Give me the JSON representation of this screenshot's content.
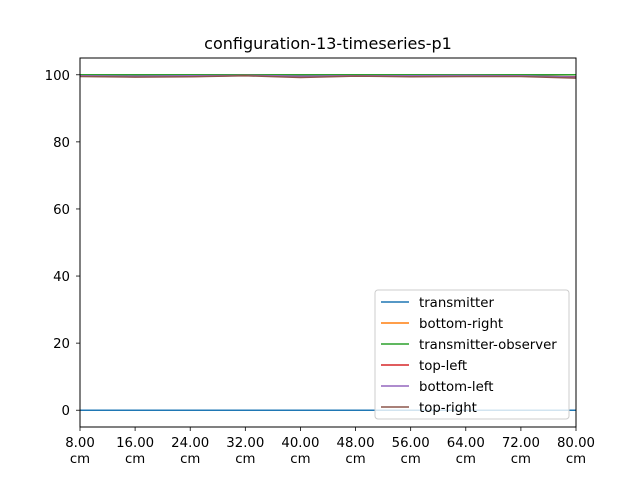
{
  "chart_data": {
    "type": "line",
    "title": "configuration-13-timeseries-p1",
    "xlabel": "",
    "ylabel": "",
    "x_ticks": [
      "8.00\ncm",
      "16.00\ncm",
      "24.00\ncm",
      "32.00\ncm",
      "40.00\ncm",
      "48.00\ncm",
      "56.00\ncm",
      "64.00\ncm",
      "72.00\ncm",
      "80.00\ncm"
    ],
    "y_ticks": [
      "0",
      "20",
      "40",
      "60",
      "80",
      "100"
    ],
    "xlim": [
      8,
      80
    ],
    "ylim": [
      -5,
      105
    ],
    "grid": false,
    "legend_position": "bottom-right",
    "x": [
      8,
      16,
      24,
      32,
      40,
      48,
      56,
      64,
      72,
      80
    ],
    "series": [
      {
        "name": "transmitter",
        "color": "#1f77b4",
        "values": [
          0,
          0,
          0,
          0,
          0,
          0,
          0,
          0,
          0,
          0
        ]
      },
      {
        "name": "bottom-right",
        "color": "#ff7f0e",
        "values": [
          100,
          100,
          100,
          100,
          100,
          100,
          100,
          100,
          100,
          100
        ]
      },
      {
        "name": "transmitter-observer",
        "color": "#2ca02c",
        "values": [
          100,
          100,
          100,
          100,
          100,
          100,
          100,
          100,
          100,
          100
        ]
      },
      {
        "name": "top-left",
        "color": "#d62728",
        "values": [
          99.6,
          99.4,
          99.5,
          99.8,
          99.5,
          99.7,
          99.6,
          99.7,
          99.6,
          99.4
        ]
      },
      {
        "name": "bottom-left",
        "color": "#9467bd",
        "values": [
          99.7,
          99.6,
          99.7,
          99.8,
          99.6,
          99.7,
          99.7,
          99.8,
          99.7,
          99.3
        ]
      },
      {
        "name": "top-right",
        "color": "#8c564b",
        "values": [
          99.5,
          99.3,
          99.4,
          99.7,
          99.2,
          99.6,
          99.4,
          99.5,
          99.5,
          99.0
        ]
      }
    ]
  }
}
